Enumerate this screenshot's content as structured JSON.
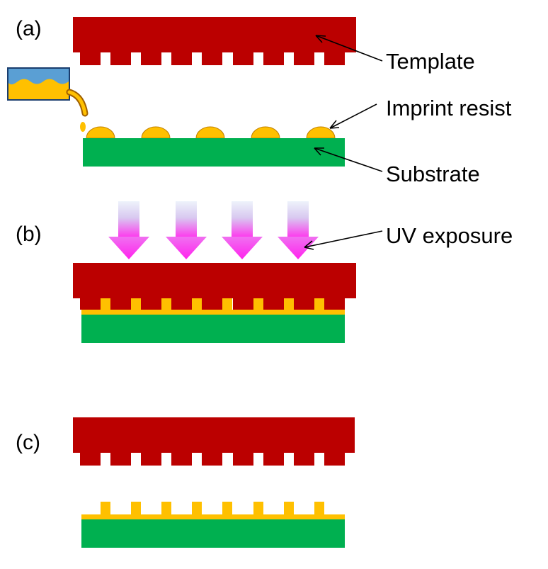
{
  "panels": [
    {
      "id": "a",
      "label": "(a)"
    },
    {
      "id": "b",
      "label": "(b)"
    },
    {
      "id": "c",
      "label": "(c)"
    }
  ],
  "callouts": {
    "template": "Template",
    "imprint_resist": "Imprint resist",
    "substrate": "Substrate",
    "uv_exposure": "UV exposure"
  },
  "colors": {
    "template": "#bb0000",
    "substrate": "#00b050",
    "resist": "#ffc000",
    "resist_outline": "#c08000",
    "container": "#5a9fd4",
    "uv_top": "#e6eefa",
    "uv_bottom": "#ff33ee"
  }
}
